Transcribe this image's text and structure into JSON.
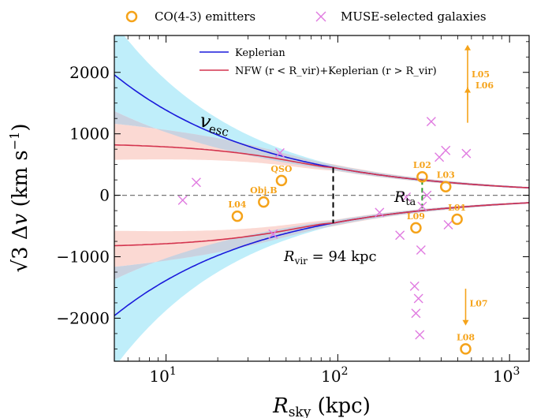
{
  "colors": {
    "co": "#f5a31a",
    "muse": "#e07be0",
    "keplerian": "#1a1adb",
    "nfw": "#d4344e",
    "kep_band": "#bfeefa",
    "nfw_band": "#fbd9d3",
    "overlap_band": "#c9d2e0",
    "rvir_line": "#000000",
    "rta_line": "#2a9a2a"
  },
  "chart_data": {
    "type": "scatter",
    "xlabel": "R_sky (kpc)",
    "ylabel": "√3 Δv (km s⁻¹)",
    "xscale": "log",
    "xlim": [
      5,
      1300
    ],
    "ylim": [
      -2700,
      2600
    ],
    "x_ticks": [
      {
        "value": 10,
        "base": "10",
        "exp": "1"
      },
      {
        "value": 100,
        "base": "10",
        "exp": "2"
      },
      {
        "value": 1000,
        "base": "10",
        "exp": "3"
      }
    ],
    "y_ticks": [
      {
        "value": 2000,
        "label": "2000"
      },
      {
        "value": 1000,
        "label": "1000"
      },
      {
        "value": 0,
        "label": "0"
      },
      {
        "value": -1000,
        "label": "−1000"
      },
      {
        "value": -2000,
        "label": "−2000"
      }
    ],
    "legend_top": [
      {
        "label": "CO(4-3) emitters",
        "marker": "circle"
      },
      {
        "label": "MUSE-selected galaxies",
        "marker": "x"
      }
    ],
    "legend_inner": [
      {
        "label": "Keplerian",
        "series": "keplerian"
      },
      {
        "label": "NFW (r < R_vir)+Keplerian (r > R_vir)",
        "series": "nfw"
      }
    ],
    "model": {
      "rvir": 94,
      "rta": 310,
      "kep_v_at_5": 1960,
      "nfw_v_at_5": 820
    },
    "co_emitters": [
      {
        "label": "L02",
        "x": 310,
        "y": 300
      },
      {
        "label": "L03",
        "x": 425,
        "y": 140
      },
      {
        "label": "QSO",
        "x": 47,
        "y": 240
      },
      {
        "label": "Obj.B",
        "x": 37,
        "y": -110
      },
      {
        "label": "L04",
        "x": 26,
        "y": -340
      },
      {
        "label": "L09",
        "x": 285,
        "y": -530
      },
      {
        "label": "L01",
        "x": 495,
        "y": -390
      },
      {
        "label": "L08",
        "x": 555,
        "y": -2500
      }
    ],
    "muse_galaxies": [
      {
        "x": 12.5,
        "y": -80
      },
      {
        "x": 15,
        "y": 210
      },
      {
        "x": 42,
        "y": -630
      },
      {
        "x": 46,
        "y": 690
      },
      {
        "x": 175,
        "y": -280
      },
      {
        "x": 230,
        "y": -650
      },
      {
        "x": 250,
        "y": -30
      },
      {
        "x": 280,
        "y": -1480
      },
      {
        "x": 285,
        "y": -1920
      },
      {
        "x": 295,
        "y": -1680
      },
      {
        "x": 300,
        "y": -2270
      },
      {
        "x": 305,
        "y": -890
      },
      {
        "x": 330,
        "y": 0
      },
      {
        "x": 350,
        "y": 1200
      },
      {
        "x": 390,
        "y": 620
      },
      {
        "x": 425,
        "y": 730
      },
      {
        "x": 440,
        "y": -480
      },
      {
        "x": 560,
        "y": 680
      },
      {
        "x": 310,
        "y": -180
      }
    ],
    "arrows": [
      {
        "label": "L05",
        "x": 570,
        "y_from": 1550,
        "y_to": 2450
      },
      {
        "label": "L06",
        "x": 570,
        "y_from": 1520,
        "y_to": 1520,
        "label_only": true
      },
      {
        "label": "L07",
        "x": 555,
        "y_from": -1520,
        "y_to": -2120
      }
    ],
    "annotations": {
      "vesc": "v",
      "vesc_sub": "esc",
      "rvir_text": " = 94 kpc",
      "rvir_sym": "R",
      "rvir_sub": "vir",
      "rta_sym": "R",
      "rta_sub": "ta"
    }
  }
}
